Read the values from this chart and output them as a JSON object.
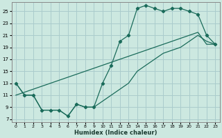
{
  "xlabel": "Humidex (Indice chaleur)",
  "xlim": [
    -0.5,
    23.5
  ],
  "ylim": [
    6.5,
    26.5
  ],
  "xticks": [
    0,
    1,
    2,
    3,
    4,
    5,
    6,
    7,
    8,
    9,
    10,
    11,
    12,
    13,
    14,
    15,
    16,
    17,
    18,
    19,
    20,
    21,
    22,
    23
  ],
  "yticks": [
    7,
    9,
    11,
    13,
    15,
    17,
    19,
    21,
    23,
    25
  ],
  "background_color": "#cce8e0",
  "grid_color": "#aacccc",
  "line_color": "#1a6b5a",
  "line1_x": [
    0,
    1,
    2,
    3,
    4,
    5,
    6,
    7,
    8,
    9,
    10,
    11,
    12,
    13,
    14,
    15,
    16,
    17,
    18,
    19,
    20,
    21,
    22,
    23
  ],
  "line1_y": [
    13,
    11,
    11,
    8.5,
    8.5,
    8.5,
    7.5,
    9.5,
    9,
    9,
    13,
    16,
    20,
    21,
    25.5,
    26,
    25.5,
    25,
    25.5,
    25.5,
    25,
    24.5,
    21,
    19.5
  ],
  "line2_x": [
    0,
    1,
    2,
    3,
    4,
    5,
    6,
    7,
    8,
    9,
    10,
    11,
    12,
    13,
    14,
    15,
    16,
    17,
    18,
    19,
    20,
    21,
    22,
    23
  ],
  "line2_y": [
    11,
    11.5,
    12,
    12.5,
    13,
    13.5,
    14,
    14.5,
    15,
    15.5,
    16,
    16.5,
    17,
    17.5,
    18,
    18.5,
    19,
    19.5,
    20,
    20.5,
    21,
    21.5,
    19.5,
    19.5
  ],
  "line3_x": [
    0,
    1,
    2,
    3,
    4,
    5,
    6,
    7,
    8,
    9,
    10,
    11,
    12,
    13,
    14,
    15,
    16,
    17,
    18,
    19,
    20,
    21,
    22,
    23
  ],
  "line3_y": [
    13,
    11,
    11,
    8.5,
    8.5,
    8.5,
    7.5,
    9.5,
    9,
    9,
    10,
    11,
    12,
    13,
    15,
    16,
    17,
    18,
    18.5,
    19,
    20,
    21,
    20,
    19.5
  ]
}
